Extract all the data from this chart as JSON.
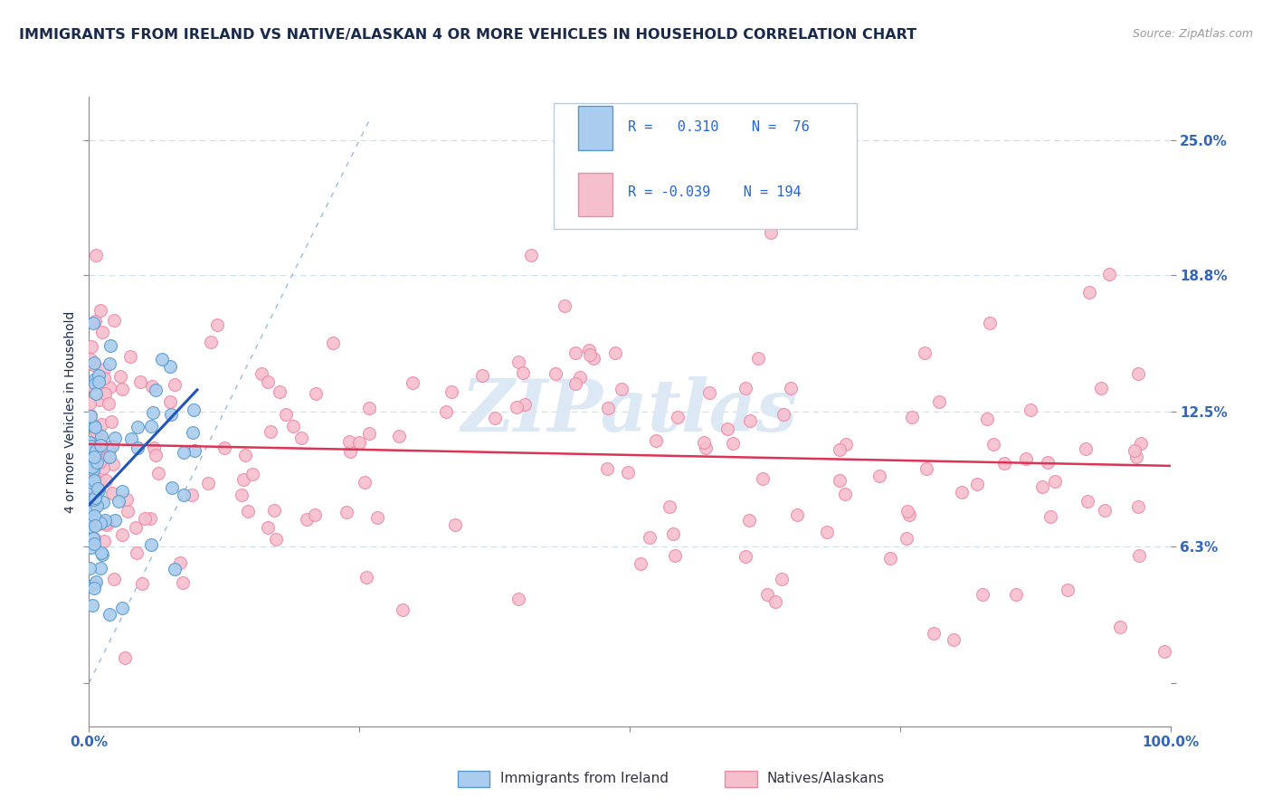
{
  "title": "IMMIGRANTS FROM IRELAND VS NATIVE/ALASKAN 4 OR MORE VEHICLES IN HOUSEHOLD CORRELATION CHART",
  "source": "Source: ZipAtlas.com",
  "ylabel": "4 or more Vehicles in Household",
  "xlim": [
    0.0,
    100.0
  ],
  "ylim": [
    -2.0,
    27.0
  ],
  "ytick_vals": [
    0.0,
    6.3,
    12.5,
    18.8,
    25.0
  ],
  "ytick_labels": [
    "",
    "6.3%",
    "12.5%",
    "18.8%",
    "25.0%"
  ],
  "xtick_vals": [
    0,
    25,
    50,
    75,
    100
  ],
  "xtick_labels": [
    "0.0%",
    "",
    "",
    "",
    "100.0%"
  ],
  "blue_R": 0.31,
  "blue_N": 76,
  "pink_R": -0.039,
  "pink_N": 194,
  "blue_color": "#aaccee",
  "pink_color": "#f5bfcc",
  "blue_edge": "#5599cc",
  "pink_edge": "#ee88aa",
  "trend_blue_color": "#2255bb",
  "trend_pink_color": "#dd3355",
  "diag_color": "#99bbdd",
  "title_color": "#1a2a4a",
  "ylabel_color": "#1a2a4a",
  "tick_color": "#3366bb",
  "grid_color": "#ccddee",
  "legend_text_color": "#1a2a4a",
  "legend_val_color": "#2266dd",
  "source_color": "#999999",
  "watermark_color": "#dde8f5",
  "blue_trend_x0": 0.0,
  "blue_trend_y0": 8.2,
  "blue_trend_x1": 10.0,
  "blue_trend_y1": 13.5,
  "pink_trend_x0": 0.0,
  "pink_trend_y0": 11.0,
  "pink_trend_x1": 100.0,
  "pink_trend_y1": 10.0
}
